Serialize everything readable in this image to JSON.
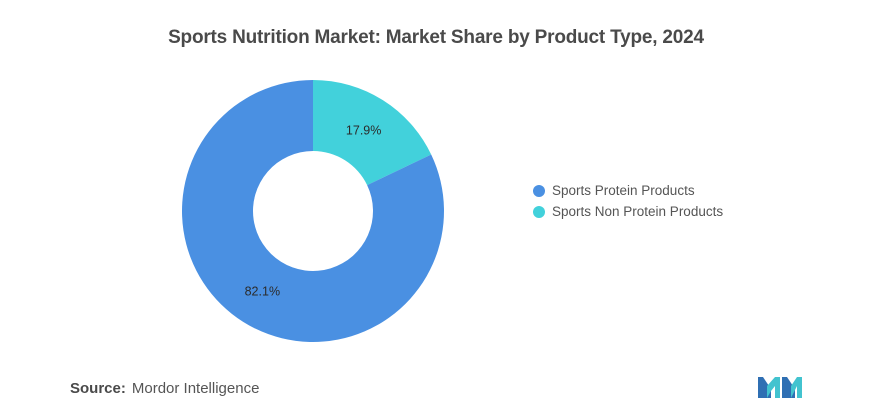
{
  "title": "Sports Nutrition Market: Market Share by Product Type, 2024",
  "source": {
    "label": "Source:",
    "value": "Mordor Intelligence"
  },
  "logo_icon": "mordor-intelligence-logo",
  "chart_data": {
    "type": "pie",
    "variant": "donut",
    "title": "Sports Nutrition Market: Market Share by Product Type, 2024",
    "legend_position": "right",
    "slices": [
      {
        "label": "Sports Protein Products",
        "value": 82.1,
        "display": "82.1%",
        "color": "#4a90e2"
      },
      {
        "label": "Sports Non Protein Products",
        "value": 17.9,
        "display": "17.9%",
        "color": "#42d1db"
      }
    ]
  }
}
